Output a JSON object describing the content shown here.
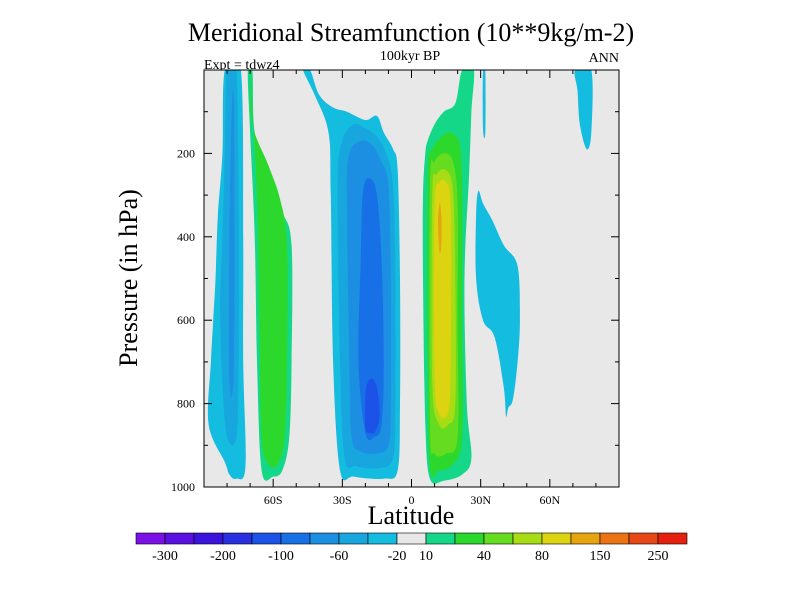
{
  "chart_data": {
    "type": "heatmap",
    "title": "Meridional Streamfunction (10**9kg/m-2)",
    "subtitle": "100kyr BP",
    "left_label": "Expt = tdwz4",
    "right_label": "ANN",
    "xlabel": "Latitude",
    "ylabel": "Pressure (in hPa)",
    "x_ticks": [
      {
        "value": -60,
        "label": "60S"
      },
      {
        "value": -30,
        "label": "30S"
      },
      {
        "value": 0,
        "label": "0"
      },
      {
        "value": 30,
        "label": "30N"
      },
      {
        "value": 60,
        "label": "60N"
      }
    ],
    "y_ticks": [
      {
        "value": 200,
        "label": "200"
      },
      {
        "value": 400,
        "label": "400"
      },
      {
        "value": 600,
        "label": "600"
      },
      {
        "value": 800,
        "label": "800"
      },
      {
        "value": 1000,
        "label": "1000"
      }
    ],
    "xlim": [
      -90,
      90
    ],
    "ylim": [
      0,
      1000
    ],
    "y_inverted": true,
    "colorbar": {
      "colors": [
        "#7a10e6",
        "#5a10e0",
        "#3a14dd",
        "#2830e0",
        "#1c52e8",
        "#1870e6",
        "#1c8fe2",
        "#18a6de",
        "#14bce0",
        "#e8e8e8",
        "#14d888",
        "#2cd82c",
        "#66dc20",
        "#a8dc14",
        "#dcd410",
        "#e6a410",
        "#ea7414",
        "#e64818",
        "#e6200e"
      ],
      "labels": [
        {
          "after": 1,
          "text": "-300"
        },
        {
          "after": 3,
          "text": "-200"
        },
        {
          "after": 5,
          "text": "-100"
        },
        {
          "after": 7,
          "text": "-60"
        },
        {
          "after": 9,
          "text": "-20"
        },
        {
          "after": 10,
          "text": "10"
        },
        {
          "after": 12,
          "text": "40"
        },
        {
          "after": 14,
          "text": "80"
        },
        {
          "after": 16,
          "text": "150"
        },
        {
          "after": 18,
          "text": "250"
        }
      ]
    },
    "background_color": "#e8e8e8",
    "regions": [
      {
        "level": 8,
        "color": "#14bce0",
        "points": [
          [
            -88,
            850
          ],
          [
            -87,
            700
          ],
          [
            -86,
            600
          ],
          [
            -85,
            500
          ],
          [
            -84,
            350
          ],
          [
            -82,
            200
          ],
          [
            -81,
            0
          ],
          [
            -74,
            0
          ],
          [
            -73,
            400
          ],
          [
            -73,
            700
          ],
          [
            -72,
            950
          ],
          [
            -76,
            980
          ],
          [
            -79,
            970
          ],
          [
            -81,
            940
          ]
        ]
      },
      {
        "level": 7,
        "color": "#18a6de",
        "points": [
          [
            -83,
            560
          ],
          [
            -82,
            400
          ],
          [
            -81,
            200
          ],
          [
            -80,
            0
          ],
          [
            -76,
            0
          ],
          [
            -75,
            300
          ],
          [
            -75,
            700
          ],
          [
            -76,
            880
          ],
          [
            -80,
            880
          ],
          [
            -82,
            750
          ]
        ]
      },
      {
        "level": 6,
        "color": "#1c8fe2",
        "points": [
          [
            -79,
            750
          ],
          [
            -79,
            400
          ],
          [
            -78,
            100
          ],
          [
            -77,
            100
          ],
          [
            -77,
            700
          ]
        ]
      },
      {
        "level": 11,
        "color": "#14d888",
        "points": [
          [
            -71,
            0
          ],
          [
            -69,
            0
          ],
          [
            -68,
            150
          ],
          [
            -62,
            250
          ],
          [
            -56,
            340
          ],
          [
            -52,
            420
          ],
          [
            -52,
            700
          ],
          [
            -53,
            880
          ],
          [
            -56,
            960
          ],
          [
            -60,
            975
          ],
          [
            -65,
            960
          ],
          [
            -67,
            700
          ],
          [
            -68,
            400
          ],
          [
            -70,
            150
          ]
        ]
      },
      {
        "level": 12,
        "color": "#2cd82c",
        "points": [
          [
            -70,
            0
          ],
          [
            -69,
            130
          ],
          [
            -62,
            230
          ],
          [
            -57,
            310
          ],
          [
            -54,
            420
          ],
          [
            -54,
            700
          ],
          [
            -55,
            880
          ],
          [
            -58,
            945
          ],
          [
            -62,
            945
          ],
          [
            -65,
            880
          ],
          [
            -66,
            600
          ],
          [
            -67,
            300
          ],
          [
            -69,
            100
          ]
        ]
      },
      {
        "level": 8,
        "color": "#14bce0",
        "points": [
          [
            -47,
            0
          ],
          [
            -44,
            0
          ],
          [
            -40,
            60
          ],
          [
            -34,
            90
          ],
          [
            -28,
            100
          ],
          [
            -20,
            120
          ],
          [
            -15,
            110
          ],
          [
            -12,
            150
          ],
          [
            -8,
            190
          ],
          [
            -6,
            240
          ],
          [
            -5,
            500
          ],
          [
            -5,
            800
          ],
          [
            -6,
            960
          ],
          [
            -12,
            980
          ],
          [
            -25,
            975
          ],
          [
            -31,
            960
          ],
          [
            -34,
            700
          ],
          [
            -35,
            300
          ],
          [
            -36,
            150
          ],
          [
            -42,
            60
          ]
        ]
      },
      {
        "level": 7,
        "color": "#18a6de",
        "points": [
          [
            -32,
            280
          ],
          [
            -30,
            170
          ],
          [
            -25,
            130
          ],
          [
            -20,
            140
          ],
          [
            -15,
            160
          ],
          [
            -11,
            200
          ],
          [
            -8,
            280
          ],
          [
            -7,
            500
          ],
          [
            -7,
            800
          ],
          [
            -8,
            930
          ],
          [
            -14,
            955
          ],
          [
            -24,
            950
          ],
          [
            -29,
            930
          ],
          [
            -31,
            700
          ]
        ]
      },
      {
        "level": 6,
        "color": "#1c8fe2",
        "points": [
          [
            -28,
            300
          ],
          [
            -27,
            200
          ],
          [
            -22,
            170
          ],
          [
            -17,
            180
          ],
          [
            -13,
            220
          ],
          [
            -10,
            280
          ],
          [
            -9,
            500
          ],
          [
            -9,
            800
          ],
          [
            -10,
            900
          ],
          [
            -15,
            920
          ],
          [
            -22,
            915
          ],
          [
            -26,
            880
          ],
          [
            -27,
            700
          ]
        ]
      },
      {
        "level": 5,
        "color": "#1870e6",
        "points": [
          [
            -23,
            700
          ],
          [
            -22,
            450
          ],
          [
            -21,
            290
          ],
          [
            -18,
            260
          ],
          [
            -15,
            300
          ],
          [
            -13,
            450
          ],
          [
            -12,
            700
          ],
          [
            -13,
            850
          ],
          [
            -16,
            880
          ],
          [
            -20,
            870
          ]
        ]
      },
      {
        "level": 4,
        "color": "#1c52e8",
        "points": [
          [
            -20,
            860
          ],
          [
            -20,
            780
          ],
          [
            -19,
            750
          ],
          [
            -17,
            740
          ],
          [
            -15,
            760
          ],
          [
            -14,
            800
          ],
          [
            -14,
            840
          ],
          [
            -16,
            870
          ],
          [
            -18,
            870
          ]
        ]
      },
      {
        "level": 11,
        "color": "#14d888",
        "points": [
          [
            6,
            200
          ],
          [
            7,
            170
          ],
          [
            10,
            130
          ],
          [
            14,
            100
          ],
          [
            19,
            80
          ],
          [
            22,
            0
          ],
          [
            27,
            0
          ],
          [
            26,
            100
          ],
          [
            25,
            250
          ],
          [
            23,
            500
          ],
          [
            24,
            800
          ],
          [
            26,
            930
          ],
          [
            22,
            970
          ],
          [
            14,
            985
          ],
          [
            8,
            980
          ],
          [
            6,
            850
          ],
          [
            5,
            500
          ],
          [
            5,
            300
          ]
        ]
      },
      {
        "level": 12,
        "color": "#2cd82c",
        "points": [
          [
            7,
            250
          ],
          [
            9,
            190
          ],
          [
            13,
            160
          ],
          [
            17,
            150
          ],
          [
            21,
            180
          ],
          [
            22,
            300
          ],
          [
            22,
            600
          ],
          [
            22,
            880
          ],
          [
            18,
            945
          ],
          [
            12,
            960
          ],
          [
            8,
            955
          ],
          [
            7,
            700
          ]
        ]
      },
      {
        "level": 13,
        "color": "#66dc20",
        "points": [
          [
            8,
            280
          ],
          [
            10,
            220
          ],
          [
            14,
            200
          ],
          [
            18,
            220
          ],
          [
            20,
            320
          ],
          [
            20,
            600
          ],
          [
            20,
            880
          ],
          [
            15,
            920
          ],
          [
            10,
            920
          ],
          [
            8,
            850
          ]
        ]
      },
      {
        "level": 14,
        "color": "#a8dc14",
        "points": [
          [
            9,
            300
          ],
          [
            11,
            250
          ],
          [
            15,
            240
          ],
          [
            18,
            290
          ],
          [
            19,
            500
          ],
          [
            19,
            800
          ],
          [
            16,
            850
          ],
          [
            12,
            850
          ],
          [
            9,
            750
          ]
        ]
      },
      {
        "level": 15,
        "color": "#dcd410",
        "points": [
          [
            10,
            330
          ],
          [
            12,
            270
          ],
          [
            15,
            270
          ],
          [
            17,
            330
          ],
          [
            17,
            700
          ],
          [
            16,
            820
          ],
          [
            12,
            825
          ],
          [
            10,
            730
          ]
        ]
      },
      {
        "level": 16,
        "color": "#e6a410",
        "points": [
          [
            11.5,
            360
          ],
          [
            12.3,
            320
          ],
          [
            13,
            360
          ],
          [
            12.8,
            430
          ],
          [
            12,
            430
          ]
        ]
      },
      {
        "level": 8,
        "color": "#14bce0",
        "points": [
          [
            31,
            0
          ],
          [
            32,
            0
          ],
          [
            32,
            150
          ],
          [
            31,
            140
          ]
        ]
      },
      {
        "level": 8,
        "color": "#14bce0",
        "points": [
          [
            28,
            350
          ],
          [
            29,
            290
          ],
          [
            31,
            320
          ],
          [
            35,
            360
          ],
          [
            40,
            420
          ],
          [
            46,
            470
          ],
          [
            47,
            600
          ],
          [
            46,
            700
          ],
          [
            44,
            790
          ],
          [
            42,
            810
          ],
          [
            41,
            830
          ],
          [
            40,
            760
          ],
          [
            36,
            640
          ],
          [
            31,
            600
          ],
          [
            28,
            500
          ]
        ]
      },
      {
        "level": 8,
        "color": "#14bce0",
        "points": [
          [
            71,
            0
          ],
          [
            78,
            0
          ],
          [
            78,
            150
          ],
          [
            76,
            190
          ],
          [
            73,
            130
          ],
          [
            72,
            50
          ]
        ]
      }
    ]
  }
}
